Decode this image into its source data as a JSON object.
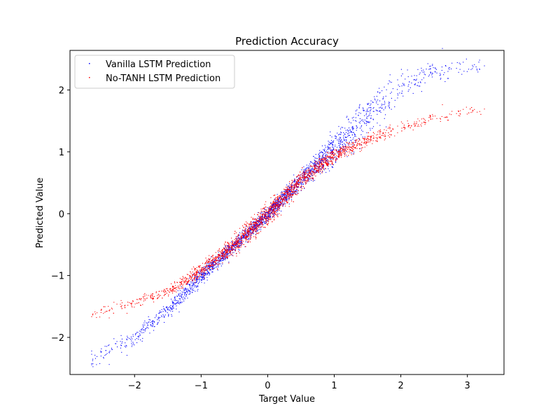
{
  "chart_data": {
    "type": "scatter",
    "title": "Prediction Accuracy",
    "xlabel": "Target Value",
    "ylabel": "Predicted Value",
    "xlim": [
      -2.97,
      3.55
    ],
    "ylim": [
      -2.6,
      2.64
    ],
    "xticks": [
      -2,
      -1,
      0,
      1,
      2,
      3
    ],
    "yticks": [
      -2,
      -1,
      0,
      1,
      2
    ],
    "xtick_labels": [
      "−2",
      "−1",
      "0",
      "1",
      "2",
      "3"
    ],
    "ytick_labels": [
      "−2",
      "−1",
      "0",
      "1",
      "2"
    ],
    "grid": false,
    "legend_position": "top-left",
    "series": [
      {
        "name": "Vanilla LSTM Prediction",
        "color": "#0000ff",
        "x_range": [
          -2.65,
          3.25
        ],
        "approx_curve": {
          "x": [
            -2.65,
            -2.0,
            -1.5,
            -1.0,
            -0.5,
            0.0,
            0.5,
            1.0,
            1.5,
            2.0,
            2.5,
            3.0,
            3.25
          ],
          "y": [
            -2.35,
            -2.0,
            -1.55,
            -1.0,
            -0.5,
            0.0,
            0.55,
            1.05,
            1.6,
            2.05,
            2.3,
            2.38,
            2.4
          ]
        }
      },
      {
        "name": "No-TANH LSTM Prediction",
        "color": "#ff0000",
        "x_range": [
          -2.65,
          3.25
        ],
        "approx_curve": {
          "x": [
            -2.65,
            -2.0,
            -1.5,
            -1.0,
            -0.5,
            0.0,
            0.5,
            1.0,
            1.5,
            2.0,
            2.5,
            3.0,
            3.25
          ],
          "y": [
            -1.62,
            -1.43,
            -1.25,
            -0.92,
            -0.48,
            0.0,
            0.55,
            0.95,
            1.2,
            1.38,
            1.55,
            1.66,
            1.7
          ]
        }
      }
    ]
  }
}
